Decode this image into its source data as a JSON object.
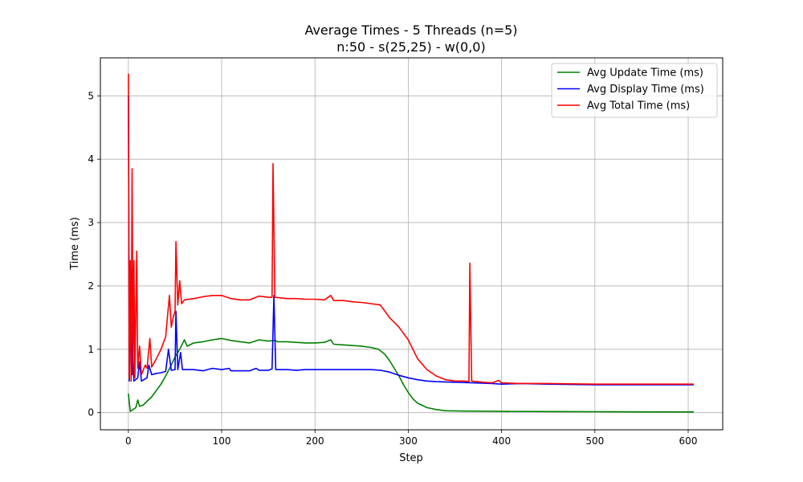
{
  "chart_data": {
    "type": "line",
    "title": "Average Times - 5 Threads (n=5)",
    "subtitle": "n:50 - s(25,25) - w(0,0)",
    "xlabel": "Step",
    "ylabel": "Time (ms)",
    "xlim": [
      -30,
      637
    ],
    "ylim": [
      -0.27,
      5.6
    ],
    "xticks": [
      0,
      100,
      200,
      300,
      400,
      500,
      600
    ],
    "yticks": [
      0,
      1,
      2,
      3,
      4,
      5
    ],
    "grid": true,
    "legend_position": "top-right",
    "series": [
      {
        "name": "Avg Update Time (ms)",
        "color": "#008000",
        "points": [
          [
            0,
            0.3
          ],
          [
            2,
            0.02
          ],
          [
            5,
            0.05
          ],
          [
            8,
            0.08
          ],
          [
            10,
            0.2
          ],
          [
            12,
            0.1
          ],
          [
            16,
            0.12
          ],
          [
            20,
            0.18
          ],
          [
            25,
            0.25
          ],
          [
            30,
            0.35
          ],
          [
            35,
            0.45
          ],
          [
            40,
            0.58
          ],
          [
            45,
            0.72
          ],
          [
            50,
            0.88
          ],
          [
            55,
            1.0
          ],
          [
            60,
            1.15
          ],
          [
            63,
            1.05
          ],
          [
            70,
            1.1
          ],
          [
            80,
            1.12
          ],
          [
            90,
            1.15
          ],
          [
            100,
            1.17
          ],
          [
            110,
            1.14
          ],
          [
            120,
            1.12
          ],
          [
            130,
            1.1
          ],
          [
            140,
            1.15
          ],
          [
            150,
            1.13
          ],
          [
            157,
            1.14
          ],
          [
            160,
            1.12
          ],
          [
            170,
            1.12
          ],
          [
            180,
            1.11
          ],
          [
            190,
            1.1
          ],
          [
            200,
            1.1
          ],
          [
            210,
            1.11
          ],
          [
            217,
            1.15
          ],
          [
            220,
            1.08
          ],
          [
            230,
            1.07
          ],
          [
            240,
            1.06
          ],
          [
            250,
            1.05
          ],
          [
            260,
            1.03
          ],
          [
            268,
            1.0
          ],
          [
            275,
            0.92
          ],
          [
            280,
            0.82
          ],
          [
            285,
            0.7
          ],
          [
            290,
            0.58
          ],
          [
            295,
            0.44
          ],
          [
            300,
            0.32
          ],
          [
            305,
            0.22
          ],
          [
            310,
            0.15
          ],
          [
            320,
            0.08
          ],
          [
            330,
            0.05
          ],
          [
            340,
            0.03
          ],
          [
            360,
            0.025
          ],
          [
            400,
            0.02
          ],
          [
            450,
            0.018
          ],
          [
            500,
            0.015
          ],
          [
            550,
            0.013
          ],
          [
            606,
            0.012
          ]
        ]
      },
      {
        "name": "Avg Display Time (ms)",
        "color": "#0000ff",
        "points": [
          [
            0,
            5.0
          ],
          [
            1,
            0.5
          ],
          [
            3,
            2.2
          ],
          [
            4,
            0.6
          ],
          [
            5,
            0.9
          ],
          [
            6,
            0.5
          ],
          [
            10,
            0.55
          ],
          [
            12,
            0.8
          ],
          [
            14,
            0.5
          ],
          [
            20,
            0.55
          ],
          [
            22,
            0.75
          ],
          [
            25,
            0.6
          ],
          [
            30,
            0.62
          ],
          [
            35,
            0.63
          ],
          [
            40,
            0.65
          ],
          [
            43,
            1.0
          ],
          [
            46,
            0.67
          ],
          [
            50,
            0.68
          ],
          [
            51,
            1.6
          ],
          [
            53,
            0.68
          ],
          [
            56,
            0.95
          ],
          [
            58,
            0.68
          ],
          [
            70,
            0.68
          ],
          [
            80,
            0.66
          ],
          [
            90,
            0.7
          ],
          [
            100,
            0.68
          ],
          [
            108,
            0.7
          ],
          [
            110,
            0.66
          ],
          [
            120,
            0.66
          ],
          [
            130,
            0.66
          ],
          [
            137,
            0.7
          ],
          [
            140,
            0.67
          ],
          [
            150,
            0.67
          ],
          [
            154,
            0.69
          ],
          [
            156,
            1.85
          ],
          [
            158,
            0.68
          ],
          [
            170,
            0.68
          ],
          [
            180,
            0.67
          ],
          [
            190,
            0.68
          ],
          [
            200,
            0.68
          ],
          [
            220,
            0.68
          ],
          [
            240,
            0.68
          ],
          [
            260,
            0.68
          ],
          [
            270,
            0.67
          ],
          [
            280,
            0.64
          ],
          [
            290,
            0.59
          ],
          [
            300,
            0.55
          ],
          [
            310,
            0.52
          ],
          [
            320,
            0.5
          ],
          [
            330,
            0.49
          ],
          [
            350,
            0.48
          ],
          [
            370,
            0.47
          ],
          [
            390,
            0.46
          ],
          [
            400,
            0.45
          ],
          [
            420,
            0.46
          ],
          [
            450,
            0.45
          ],
          [
            500,
            0.44
          ],
          [
            550,
            0.44
          ],
          [
            606,
            0.44
          ]
        ]
      },
      {
        "name": "Avg Total Time (ms)",
        "color": "#ff0000",
        "points": [
          [
            0,
            5.35
          ],
          [
            1,
            0.55
          ],
          [
            2,
            2.4
          ],
          [
            3,
            0.5
          ],
          [
            4,
            3.85
          ],
          [
            5,
            0.6
          ],
          [
            6,
            2.4
          ],
          [
            7,
            0.55
          ],
          [
            9,
            2.55
          ],
          [
            10,
            0.7
          ],
          [
            12,
            1.05
          ],
          [
            14,
            0.6
          ],
          [
            18,
            0.75
          ],
          [
            20,
            0.7
          ],
          [
            23,
            1.17
          ],
          [
            25,
            0.72
          ],
          [
            30,
            0.85
          ],
          [
            35,
            1.0
          ],
          [
            40,
            1.2
          ],
          [
            44,
            1.85
          ],
          [
            46,
            1.35
          ],
          [
            48,
            1.5
          ],
          [
            50,
            1.6
          ],
          [
            51,
            2.7
          ],
          [
            53,
            1.7
          ],
          [
            55,
            2.08
          ],
          [
            57,
            1.72
          ],
          [
            60,
            1.78
          ],
          [
            70,
            1.8
          ],
          [
            80,
            1.83
          ],
          [
            90,
            1.85
          ],
          [
            100,
            1.85
          ],
          [
            110,
            1.8
          ],
          [
            120,
            1.78
          ],
          [
            130,
            1.78
          ],
          [
            140,
            1.84
          ],
          [
            150,
            1.82
          ],
          [
            154,
            1.82
          ],
          [
            155,
            3.93
          ],
          [
            157,
            1.82
          ],
          [
            170,
            1.8
          ],
          [
            180,
            1.8
          ],
          [
            190,
            1.79
          ],
          [
            200,
            1.79
          ],
          [
            210,
            1.78
          ],
          [
            217,
            1.85
          ],
          [
            220,
            1.77
          ],
          [
            230,
            1.77
          ],
          [
            240,
            1.75
          ],
          [
            250,
            1.74
          ],
          [
            260,
            1.72
          ],
          [
            270,
            1.7
          ],
          [
            275,
            1.6
          ],
          [
            280,
            1.5
          ],
          [
            290,
            1.35
          ],
          [
            300,
            1.15
          ],
          [
            305,
            1.0
          ],
          [
            310,
            0.85
          ],
          [
            320,
            0.68
          ],
          [
            330,
            0.58
          ],
          [
            340,
            0.52
          ],
          [
            350,
            0.5
          ],
          [
            360,
            0.5
          ],
          [
            365,
            0.49
          ],
          [
            366,
            2.36
          ],
          [
            368,
            0.5
          ],
          [
            380,
            0.48
          ],
          [
            390,
            0.47
          ],
          [
            397,
            0.51
          ],
          [
            400,
            0.47
          ],
          [
            420,
            0.46
          ],
          [
            450,
            0.46
          ],
          [
            500,
            0.45
          ],
          [
            550,
            0.45
          ],
          [
            606,
            0.45
          ]
        ]
      }
    ]
  }
}
